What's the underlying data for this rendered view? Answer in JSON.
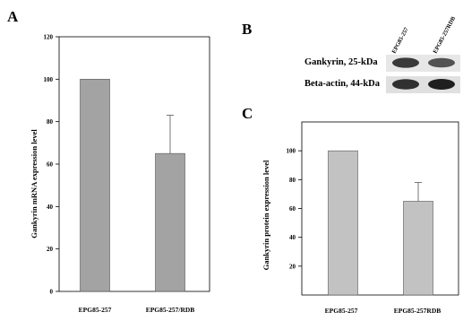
{
  "panels": {
    "a": {
      "letter": "A"
    },
    "b": {
      "letter": "B",
      "lanes": [
        "EPG85-257",
        "EPG85-257RDB"
      ],
      "rows": [
        {
          "label": "Gankyrin, 25-kDa",
          "band_intensity": [
            0.85,
            0.7
          ]
        },
        {
          "label": "Beta-actin, 44-kDa",
          "band_intensity": [
            0.9,
            1.0
          ]
        }
      ]
    },
    "c": {
      "letter": "C"
    }
  },
  "chart_data": [
    {
      "type": "bar",
      "panel": "A",
      "categories": [
        "EPG85-257",
        "EPG85-257/RDB"
      ],
      "values": [
        100,
        65
      ],
      "error_upper": [
        0,
        18
      ],
      "ylabel": "Gankyrin mRNA expression level",
      "xlabel": "",
      "ylim": [
        0,
        120
      ],
      "yticks": [
        "0",
        "20",
        "40",
        "60",
        "80",
        "100",
        "120"
      ],
      "bar_color": "#a3a3a3",
      "grid": false
    },
    {
      "type": "bar",
      "panel": "C",
      "categories": [
        "EPG85-257",
        "EPG85-257RDB"
      ],
      "values": [
        100,
        65
      ],
      "error_upper": [
        0,
        13
      ],
      "ylabel": "Gankyrin protein expression level",
      "xlabel": "",
      "ylim": [
        0,
        120
      ],
      "yticks": [
        "20",
        "40",
        "60",
        "80",
        "100"
      ],
      "bar_color": "#c2c2c2",
      "grid": false
    }
  ]
}
